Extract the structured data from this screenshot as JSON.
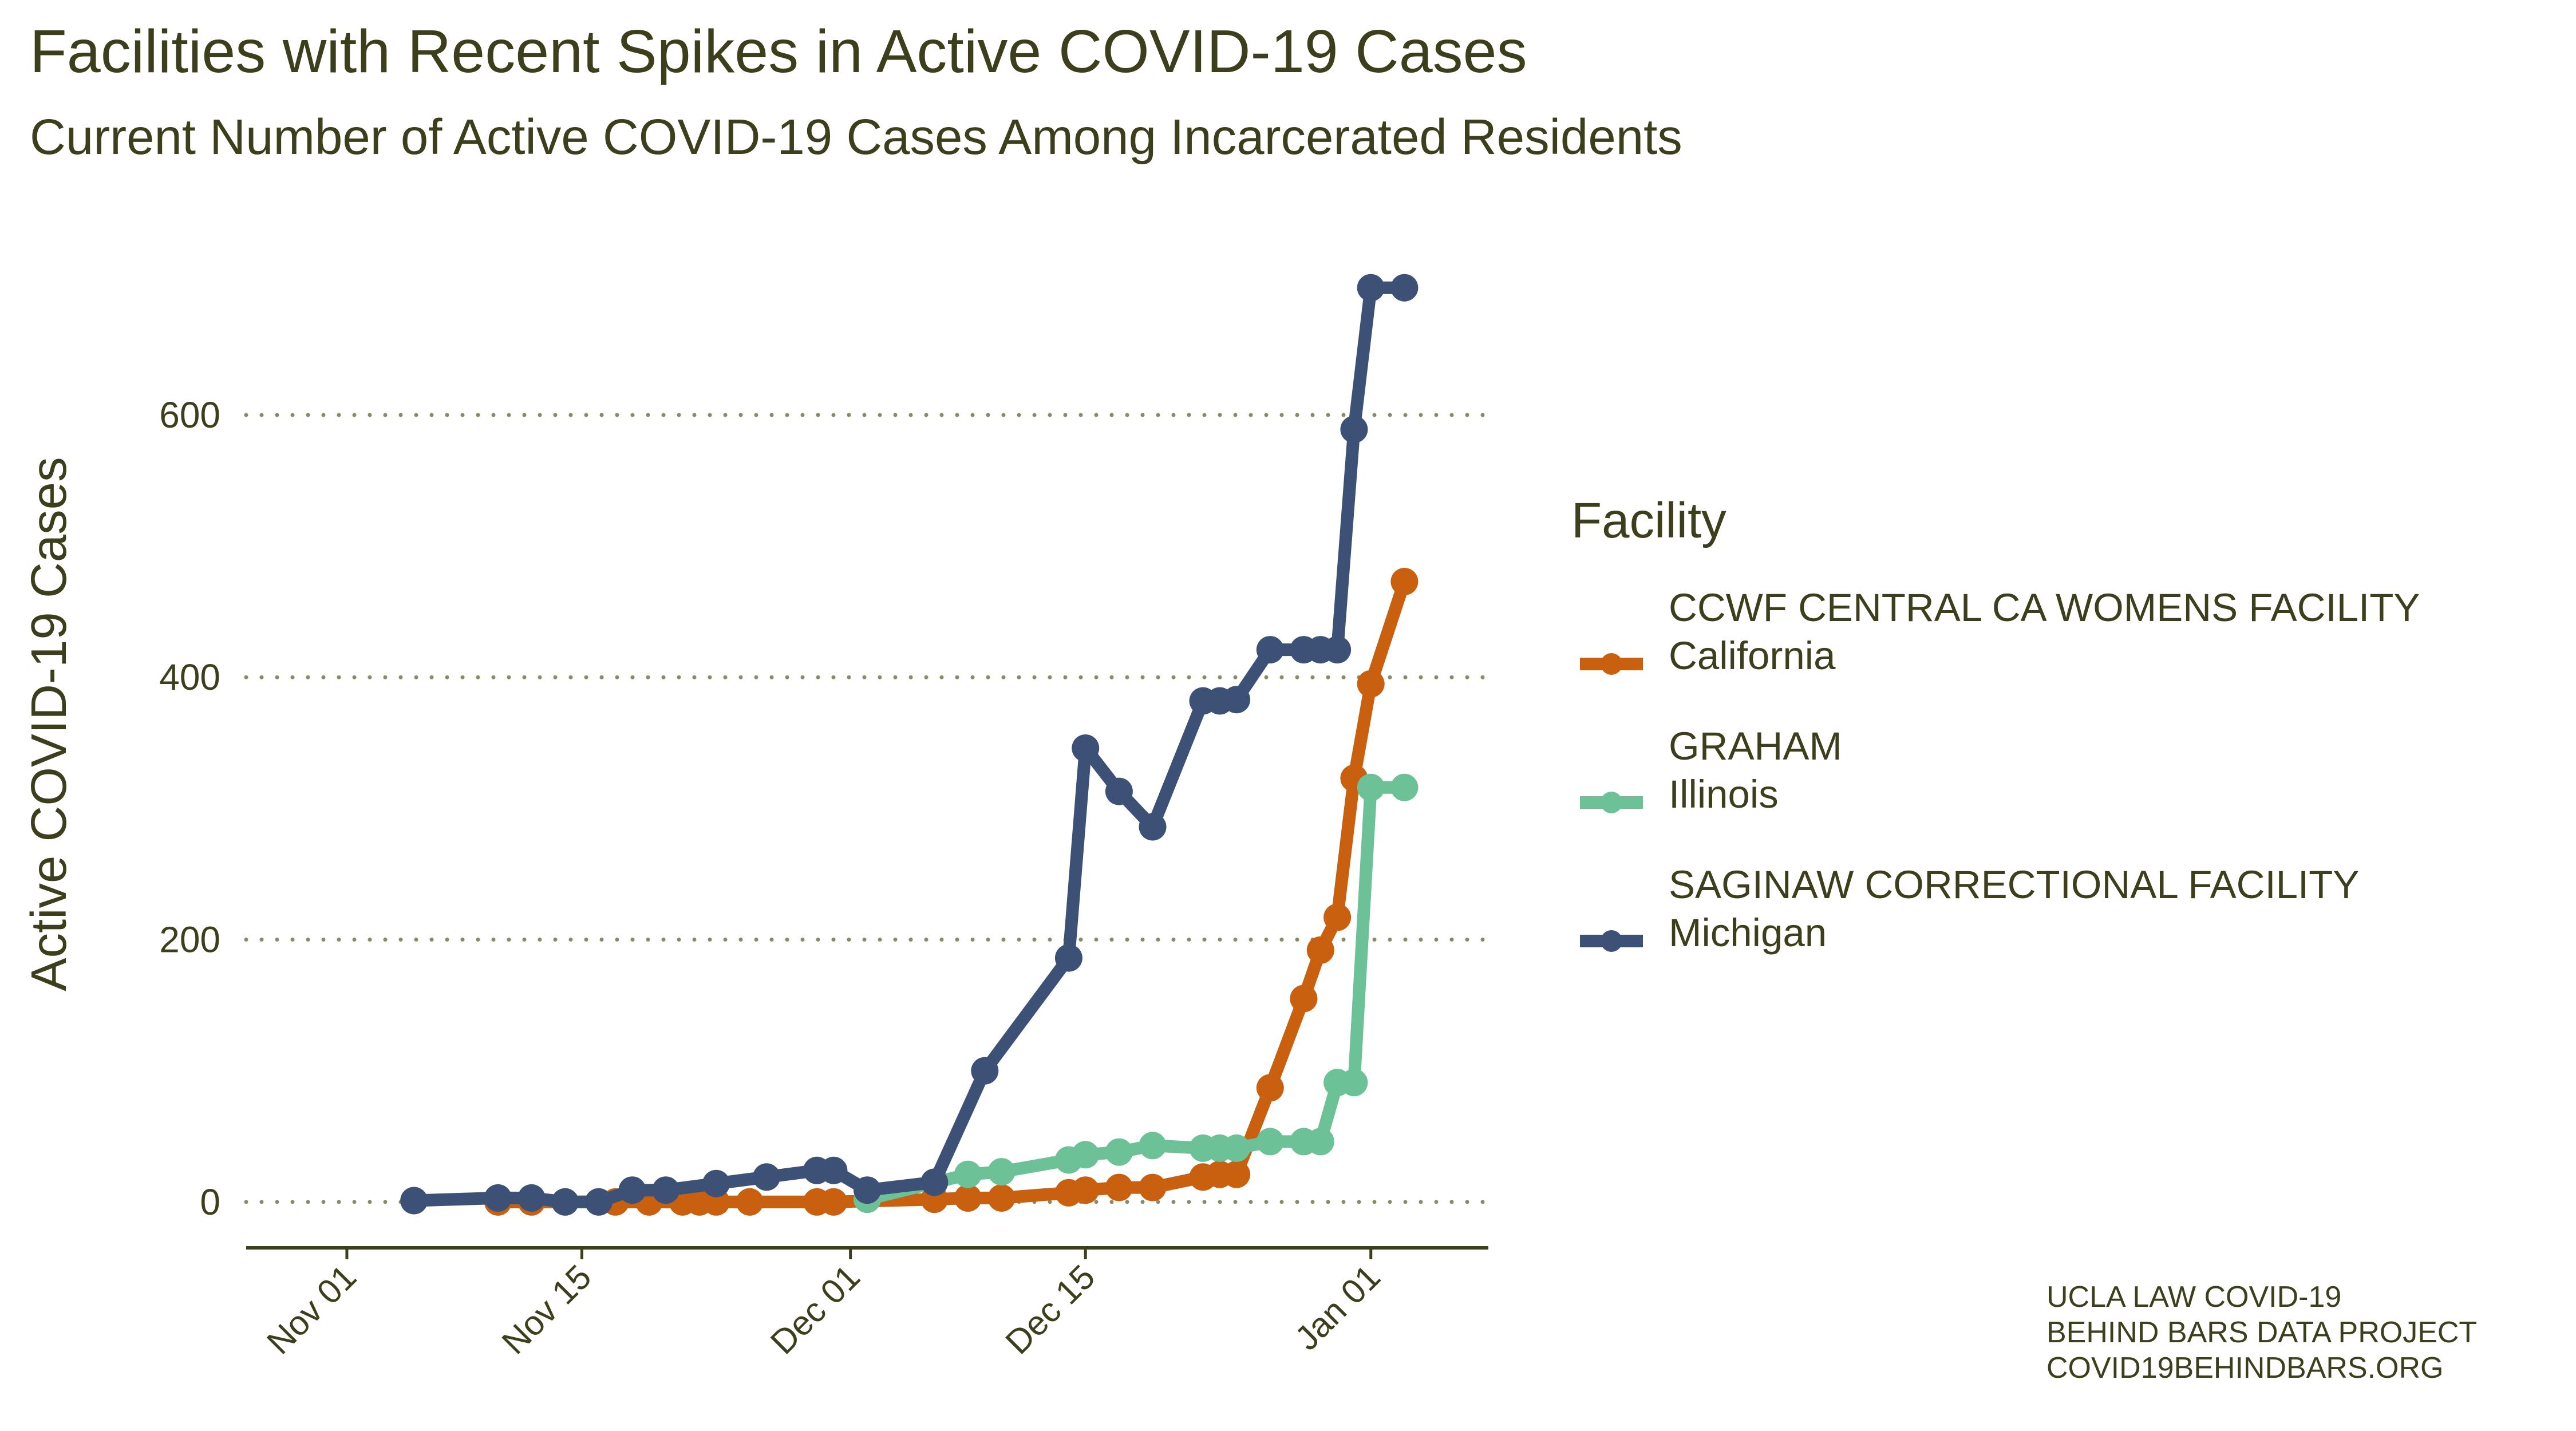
{
  "title": "Facilities with Recent Spikes in Active COVID-19 Cases",
  "subtitle": "Current Number of Active COVID-19 Cases Among Incarcerated Residents",
  "credit": [
    "UCLA LAW COVID-19",
    "BEHIND BARS DATA PROJECT",
    "COVID19BEHINDBARS.ORG"
  ],
  "colors": {
    "text": "#3d3e1c",
    "grid": "#8a8a6a"
  },
  "chart_data": {
    "type": "line",
    "title": "Facilities with Recent Spikes in Active COVID-19 Cases",
    "subtitle": "Current Number of Active COVID-19 Cases Among Incarcerated Residents",
    "xlabel": "",
    "ylabel": "Active COVID-19 Cases",
    "x_type": "date",
    "xlim": [
      "2020-10-26",
      "2021-01-08"
    ],
    "ylim": [
      -35,
      720
    ],
    "x_ticks": [
      {
        "date": "2020-11-01",
        "label": "Nov 01"
      },
      {
        "date": "2020-11-15",
        "label": "Nov 15"
      },
      {
        "date": "2020-12-01",
        "label": "Dec 01"
      },
      {
        "date": "2020-12-15",
        "label": "Dec 15"
      },
      {
        "date": "2021-01-01",
        "label": "Jan 01"
      }
    ],
    "y_ticks": [
      0,
      200,
      400,
      600
    ],
    "grid": "horizontal dotted",
    "legend": {
      "title": "Facility",
      "position": "right"
    },
    "series": [
      {
        "name": "CCWF CENTRAL CA WOMENS FACILITY",
        "state": "California",
        "color": "#c8600f",
        "points": [
          [
            "2020-11-10",
            0
          ],
          [
            "2020-11-12",
            0
          ],
          [
            "2020-11-17",
            0
          ],
          [
            "2020-11-19",
            0
          ],
          [
            "2020-11-21",
            0
          ],
          [
            "2020-11-22",
            0
          ],
          [
            "2020-11-23",
            0
          ],
          [
            "2020-11-25",
            0
          ],
          [
            "2020-11-29",
            0
          ],
          [
            "2020-11-30",
            0
          ],
          [
            "2020-12-06",
            2
          ],
          [
            "2020-12-08",
            3
          ],
          [
            "2020-12-10",
            3
          ],
          [
            "2020-12-14",
            7
          ],
          [
            "2020-12-15",
            9
          ],
          [
            "2020-12-17",
            11
          ],
          [
            "2020-12-19",
            11
          ],
          [
            "2020-12-22",
            19
          ],
          [
            "2020-12-23",
            21
          ],
          [
            "2020-12-24",
            21
          ],
          [
            "2020-12-26",
            87
          ],
          [
            "2020-12-28",
            155
          ],
          [
            "2020-12-29",
            192
          ],
          [
            "2020-12-30",
            217
          ],
          [
            "2020-12-31",
            323
          ],
          [
            "2021-01-01",
            395
          ],
          [
            "2021-01-03",
            473
          ]
        ]
      },
      {
        "name": "GRAHAM",
        "state": "Illinois",
        "color": "#6cc197",
        "points": [
          [
            "2020-12-02",
            2
          ],
          [
            "2020-12-08",
            21
          ],
          [
            "2020-12-10",
            23
          ],
          [
            "2020-12-14",
            32
          ],
          [
            "2020-12-15",
            36
          ],
          [
            "2020-12-17",
            38
          ],
          [
            "2020-12-19",
            43
          ],
          [
            "2020-12-22",
            41
          ],
          [
            "2020-12-23",
            41
          ],
          [
            "2020-12-24",
            41
          ],
          [
            "2020-12-26",
            46
          ],
          [
            "2020-12-28",
            46
          ],
          [
            "2020-12-29",
            46
          ],
          [
            "2020-12-30",
            91
          ],
          [
            "2020-12-31",
            91
          ],
          [
            "2021-01-01",
            316
          ],
          [
            "2021-01-03",
            316
          ]
        ]
      },
      {
        "name": "SAGINAW CORRECTIONAL FACILITY",
        "state": "Michigan",
        "color": "#3d5176",
        "points": [
          [
            "2020-11-05",
            1
          ],
          [
            "2020-11-10",
            3
          ],
          [
            "2020-11-12",
            3
          ],
          [
            "2020-11-14",
            0
          ],
          [
            "2020-11-16",
            0
          ],
          [
            "2020-11-18",
            9
          ],
          [
            "2020-11-20",
            9
          ],
          [
            "2020-11-23",
            14
          ],
          [
            "2020-11-26",
            19
          ],
          [
            "2020-11-29",
            24
          ],
          [
            "2020-11-30",
            24
          ],
          [
            "2020-12-02",
            9
          ],
          [
            "2020-12-06",
            15
          ],
          [
            "2020-12-09",
            100
          ],
          [
            "2020-12-14",
            186
          ],
          [
            "2020-12-15",
            346
          ],
          [
            "2020-12-17",
            313
          ],
          [
            "2020-12-19",
            286
          ],
          [
            "2020-12-22",
            382
          ],
          [
            "2020-12-23",
            382
          ],
          [
            "2020-12-24",
            383
          ],
          [
            "2020-12-26",
            421
          ],
          [
            "2020-12-28",
            421
          ],
          [
            "2020-12-29",
            421
          ],
          [
            "2020-12-30",
            421
          ],
          [
            "2020-12-31",
            589
          ],
          [
            "2021-01-01",
            697
          ],
          [
            "2021-01-03",
            697
          ]
        ]
      }
    ]
  }
}
